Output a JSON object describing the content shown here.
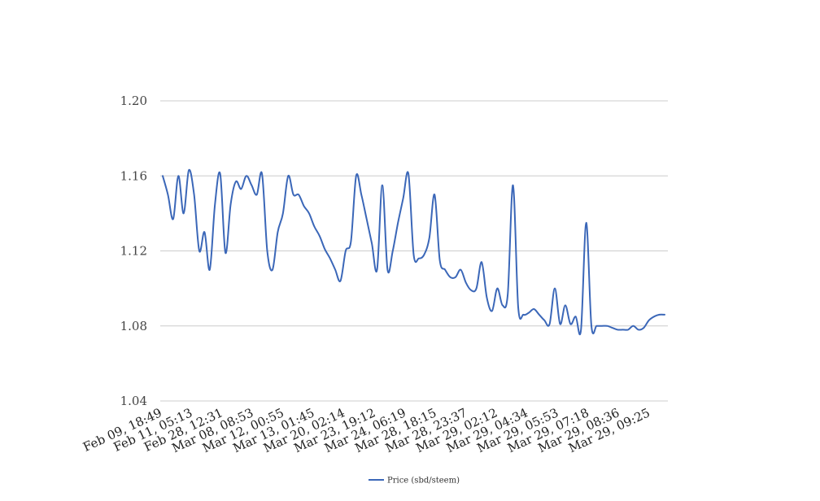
{
  "chart_data": {
    "type": "line",
    "title": "",
    "xlabel": "",
    "ylabel": "",
    "ylim": [
      1.04,
      1.2
    ],
    "yticks": [
      "1.04",
      "1.08",
      "1.12",
      "1.16",
      "1.20"
    ],
    "ytick_values": [
      1.04,
      1.08,
      1.12,
      1.16,
      1.2
    ],
    "xtick_labels": [
      "Feb 09, 18:49",
      "Feb 11, 05:13",
      "Feb 28, 12:31",
      "Mar 08, 08:53",
      "Mar 12, 00:55",
      "Mar 13, 01:45",
      "Mar 20, 02:14",
      "Mar 23, 19:12",
      "Mar 24, 06:19",
      "Mar 28, 18:15",
      "Mar 28, 23:37",
      "Mar 29, 02:12",
      "Mar 29, 04:34",
      "Mar 29, 05:53",
      "Mar 29, 07:18",
      "Mar 29, 08:36",
      "Mar 29, 09:25"
    ],
    "grid": true,
    "legend_position": "bottom-center",
    "color": "#3b67b8",
    "series": [
      {
        "name": "Price (sbd/steem)",
        "values": [
          1.16,
          1.15,
          1.137,
          1.16,
          1.14,
          1.163,
          1.15,
          1.12,
          1.13,
          1.11,
          1.145,
          1.161,
          1.119,
          1.145,
          1.157,
          1.153,
          1.16,
          1.155,
          1.15,
          1.161,
          1.12,
          1.11,
          1.13,
          1.14,
          1.16,
          1.15,
          1.15,
          1.144,
          1.14,
          1.133,
          1.128,
          1.121,
          1.116,
          1.11,
          1.104,
          1.12,
          1.125,
          1.16,
          1.15,
          1.137,
          1.124,
          1.11,
          1.155,
          1.11,
          1.12,
          1.135,
          1.148,
          1.161,
          1.118,
          1.116,
          1.118,
          1.127,
          1.15,
          1.115,
          1.11,
          1.106,
          1.106,
          1.11,
          1.103,
          1.099,
          1.1,
          1.114,
          1.095,
          1.088,
          1.1,
          1.091,
          1.097,
          1.155,
          1.09,
          1.086,
          1.087,
          1.089,
          1.086,
          1.083,
          1.081,
          1.1,
          1.081,
          1.091,
          1.081,
          1.085,
          1.078,
          1.135,
          1.08,
          1.08,
          1.08,
          1.08,
          1.079,
          1.078,
          1.078,
          1.078,
          1.08,
          1.078,
          1.079,
          1.083,
          1.085,
          1.086,
          1.086
        ]
      }
    ]
  }
}
